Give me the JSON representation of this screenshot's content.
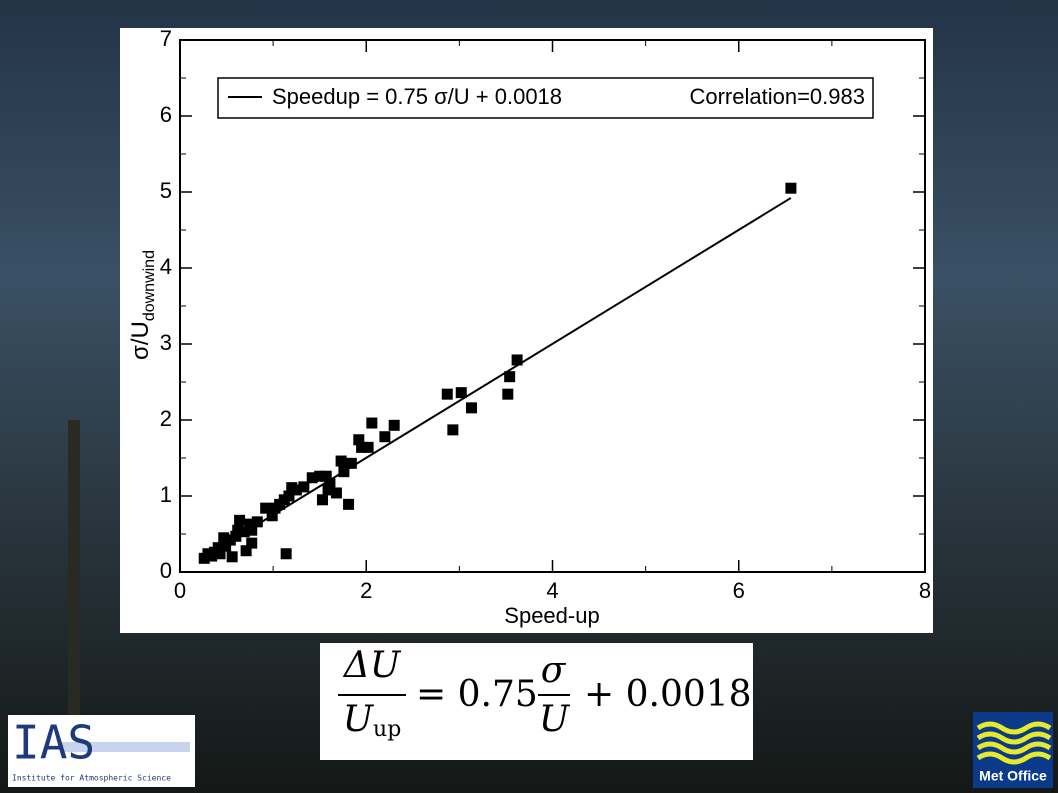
{
  "chart_data": {
    "type": "scatter",
    "x_label": "Speed-up",
    "y_label": "σ/U",
    "y_label_sub": "downwind",
    "legend": {
      "label": "Speedup = 0.75 σ/U + 0.0018",
      "note": "Correlation=0.983"
    },
    "fit": {
      "slope": 0.75,
      "intercept": 0.0018
    },
    "color": "#000000",
    "x": [
      6.56,
      3.62,
      3.54,
      3.52,
      3.02,
      2.87,
      3.13,
      2.93,
      2.06,
      2.3,
      2.2,
      1.92,
      1.95,
      2.02,
      1.73,
      1.84,
      1.76,
      1.81,
      1.57,
      1.5,
      1.42,
      1.61,
      1.59,
      1.68,
      1.53,
      1.33,
      1.25,
      1.2,
      1.17,
      1.12,
      1.07,
      1.14,
      1.02,
      0.92,
      0.99,
      0.83,
      0.75,
      0.77,
      0.69,
      0.77,
      0.71,
      0.6,
      0.62,
      0.54,
      0.49,
      0.47,
      0.56,
      0.41,
      0.37,
      0.3,
      0.26,
      0.34,
      0.43,
      0.64
    ],
    "values": [
      5.05,
      2.79,
      2.57,
      2.34,
      2.36,
      2.34,
      2.16,
      1.87,
      1.96,
      1.93,
      1.78,
      1.74,
      1.64,
      1.64,
      1.46,
      1.43,
      1.32,
      0.89,
      1.26,
      1.26,
      1.24,
      1.16,
      1.08,
      1.04,
      0.95,
      1.12,
      1.08,
      1.11,
      1.0,
      0.95,
      0.89,
      0.24,
      0.84,
      0.84,
      0.74,
      0.66,
      0.63,
      0.55,
      0.53,
      0.38,
      0.28,
      0.47,
      0.55,
      0.42,
      0.34,
      0.45,
      0.2,
      0.32,
      0.26,
      0.24,
      0.18,
      0.21,
      0.24,
      0.68
    ],
    "xlim": [
      0,
      8
    ],
    "xticks": [
      0,
      2,
      4,
      6,
      8
    ],
    "ylim": [
      0,
      7
    ],
    "yticks": [
      0,
      1,
      2,
      3,
      4,
      5,
      6,
      7
    ]
  },
  "equation": {
    "lhs_num": "ΔU",
    "lhs_den": "U",
    "lhs_den_sub": "up",
    "eq": "= 0.75",
    "rhs_num": "σ",
    "rhs_den": "U",
    "rhs_tail": "+ 0.0018"
  },
  "logos": {
    "ias_title": "IAS",
    "ias_subtitle": "Institute for Atmospheric Science",
    "met_office": "Met Office"
  }
}
